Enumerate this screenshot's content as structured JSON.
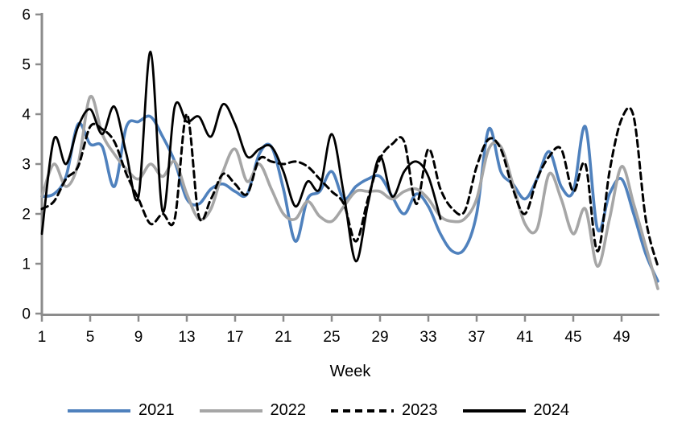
{
  "chart_data": {
    "type": "line",
    "title": "",
    "xlabel": "Week",
    "ylabel": "",
    "smoothed": true,
    "grid": false,
    "legend_position": "bottom",
    "axis_color": "#8C8C8C",
    "text_color": "#000000",
    "x_axis": {
      "start": 1,
      "end": 52,
      "step": 1,
      "tick_labels": [
        1,
        5,
        9,
        13,
        17,
        21,
        25,
        29,
        33,
        37,
        41,
        45,
        49
      ]
    },
    "y_axis": {
      "min": 0,
      "max": 6,
      "tick_labels": [
        0,
        1,
        2,
        3,
        4,
        5,
        6
      ]
    },
    "series": [
      {
        "name": "2021",
        "color": "#4F81BD",
        "dash": false,
        "weeks_covered": "1-52",
        "values": [
          2.35,
          2.4,
          2.75,
          3.8,
          3.4,
          3.35,
          2.55,
          3.75,
          3.85,
          3.95,
          3.55,
          3.05,
          2.3,
          2.2,
          2.5,
          2.6,
          2.45,
          2.4,
          3.2,
          3.35,
          2.5,
          1.45,
          2.3,
          2.45,
          2.85,
          2.3,
          2.55,
          2.7,
          2.75,
          2.35,
          2.0,
          2.4,
          2.15,
          1.6,
          1.25,
          1.3,
          2.0,
          3.7,
          2.85,
          2.6,
          2.3,
          2.7,
          3.25,
          2.55,
          2.45,
          3.75,
          1.7,
          2.4,
          2.7,
          2.0,
          1.2,
          0.65
        ]
      },
      {
        "name": "2022",
        "color": "#A6A6A6",
        "dash": false,
        "weeks_covered": "1-52",
        "values": [
          2.35,
          3.0,
          2.55,
          3.0,
          4.35,
          3.6,
          3.2,
          2.9,
          2.7,
          3.0,
          2.75,
          3.05,
          2.4,
          1.9,
          2.1,
          2.85,
          3.3,
          2.65,
          3.0,
          2.5,
          2.0,
          1.9,
          2.25,
          1.95,
          1.85,
          2.15,
          2.45,
          2.45,
          2.45,
          2.3,
          2.45,
          2.5,
          2.3,
          1.95,
          1.85,
          1.9,
          2.3,
          3.3,
          3.35,
          2.6,
          1.8,
          1.7,
          2.8,
          2.3,
          1.6,
          2.1,
          0.95,
          1.9,
          2.95,
          2.2,
          1.35,
          0.5
        ]
      },
      {
        "name": "2023",
        "color": "#000000",
        "dash": true,
        "weeks_covered": "1-52",
        "values": [
          2.1,
          2.25,
          2.7,
          2.95,
          3.75,
          3.7,
          3.45,
          2.8,
          2.3,
          1.8,
          2.0,
          1.9,
          4.0,
          1.95,
          2.3,
          2.8,
          2.6,
          2.4,
          3.1,
          3.05,
          3.0,
          3.05,
          2.95,
          2.7,
          2.45,
          2.2,
          1.45,
          2.3,
          3.1,
          3.4,
          3.45,
          2.2,
          3.3,
          2.5,
          2.1,
          2.05,
          2.95,
          3.5,
          3.3,
          2.5,
          2.0,
          2.7,
          3.15,
          3.3,
          2.45,
          3.0,
          1.25,
          2.85,
          3.9,
          3.95,
          1.9,
          0.95
        ]
      },
      {
        "name": "2024",
        "color": "#000000",
        "dash": false,
        "weeks_covered": "1-34",
        "values": [
          1.6,
          3.5,
          3.0,
          3.75,
          4.1,
          3.6,
          4.15,
          3.2,
          2.35,
          5.25,
          2.05,
          4.15,
          3.85,
          3.95,
          3.55,
          4.2,
          3.8,
          3.15,
          3.3,
          3.35,
          2.85,
          2.15,
          2.65,
          2.5,
          3.6,
          2.4,
          1.05,
          2.2,
          3.15,
          2.35,
          2.85,
          3.05,
          2.75,
          1.9
        ]
      }
    ]
  }
}
